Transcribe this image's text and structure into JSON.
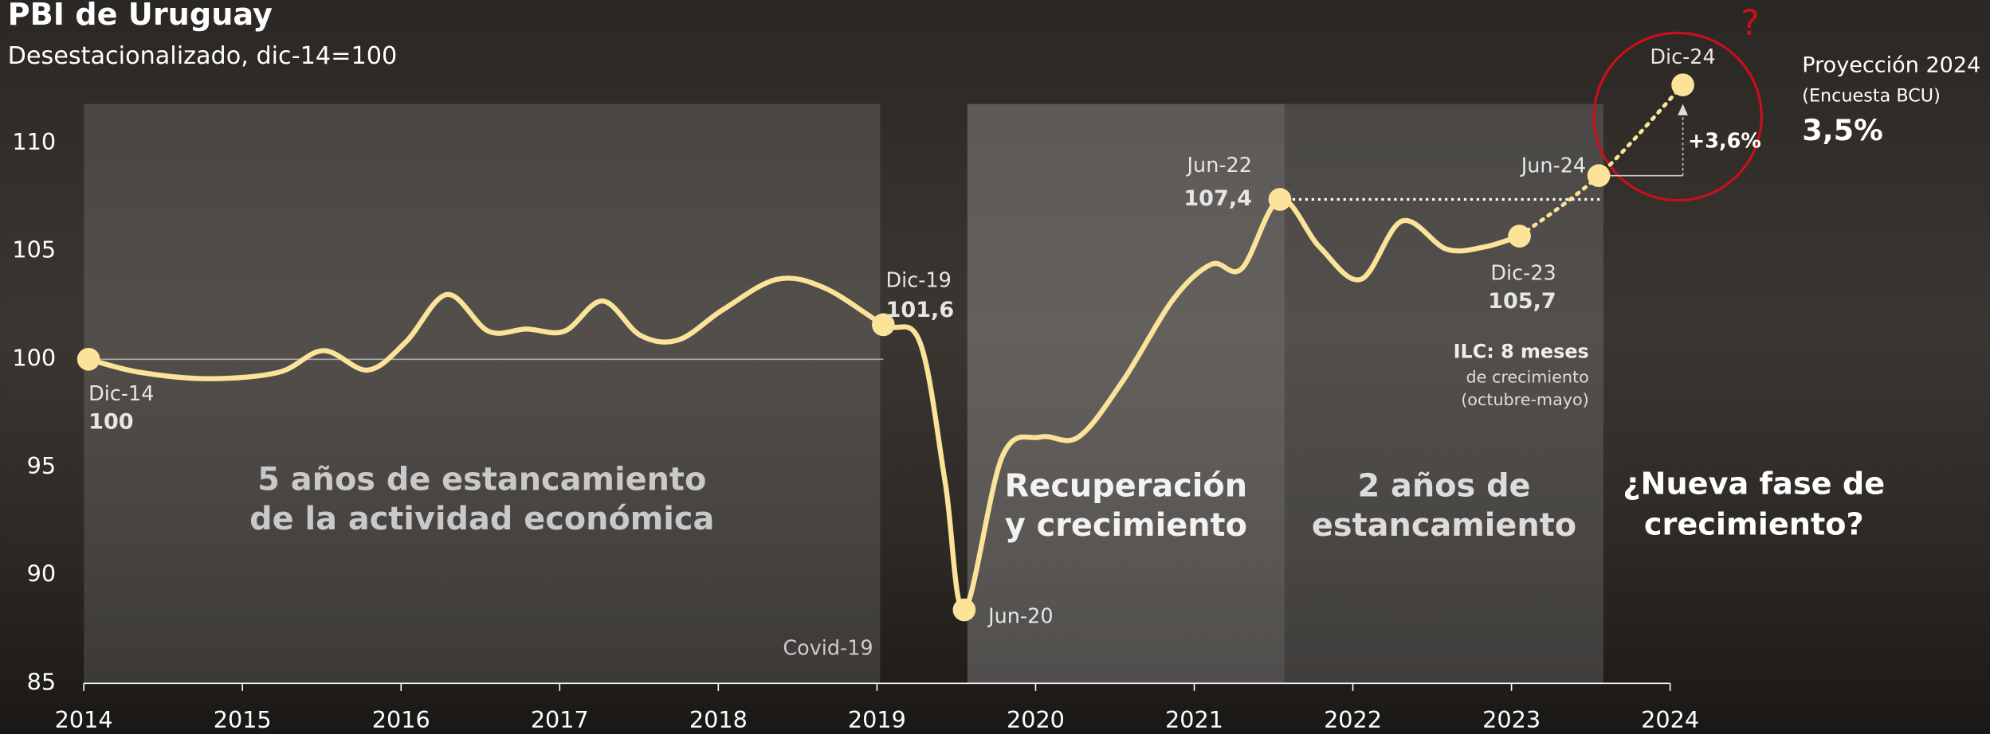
{
  "chart_data": {
    "type": "line",
    "title": "PBI de Uruguay",
    "subtitle": "Desestacionalizado, dic-14=100",
    "xlim": [
      2014,
      2024
    ],
    "xticks": [
      2014,
      2015,
      2016,
      2017,
      2018,
      2019,
      2020,
      2021,
      2022,
      2023,
      2024
    ],
    "ylim": [
      85,
      110
    ],
    "yticks": [
      85,
      90,
      95,
      100,
      105,
      110
    ],
    "series": [
      {
        "color": "#fbe39a",
        "x": [
          2014.03,
          2014.35,
          2014.79,
          2015.23,
          2015.51,
          2015.79,
          2016.03,
          2016.29,
          2016.55,
          2016.79,
          2017.03,
          2017.27,
          2017.51,
          2017.75,
          2018.03,
          2018.37,
          2018.67,
          2019.04,
          2019.27,
          2019.43,
          2019.55,
          2019.79,
          2020.03,
          2020.27,
          2020.55,
          2020.87,
          2021.11,
          2021.3,
          2021.54,
          2021.79,
          2022.05,
          2022.31,
          2022.59,
          2022.83,
          2023.05
        ],
        "values": [
          100.0,
          99.4,
          99.1,
          99.4,
          100.4,
          99.5,
          100.8,
          103.0,
          101.3,
          101.4,
          101.3,
          102.7,
          101.1,
          100.9,
          102.3,
          103.7,
          103.3,
          101.6,
          100.8,
          94.3,
          88.4,
          95.5,
          96.4,
          96.4,
          99.0,
          102.8,
          104.4,
          104.2,
          107.4,
          105.2,
          103.7,
          106.4,
          105.1,
          105.2,
          105.7
        ]
      }
    ],
    "projection": {
      "color": "#fbe39a",
      "x": [
        2023.05,
        2023.55,
        2024.08
      ],
      "values": [
        105.7,
        108.5,
        112.7
      ]
    },
    "points": {
      "x": [
        2014.03,
        2019.04,
        2019.55,
        2021.54,
        2023.05,
        2023.55,
        2024.08
      ],
      "values": [
        100,
        101.6,
        88.4,
        107.4,
        105.7,
        108.5,
        112.7
      ],
      "labels": [
        "Dic-14",
        "Dic-19",
        "Jun-20",
        "Jun-22",
        "Dic-23",
        "Jun-24",
        "Dic-24"
      ],
      "value_labels": [
        "100",
        "101,6",
        null,
        "107,4",
        "105,7",
        null,
        null
      ]
    },
    "growth_label": "+3,6%",
    "periods": [
      {
        "lines": [
          "5 años de estancamiento",
          "de la actividad económica"
        ],
        "xlim": [
          2014,
          2019.02
        ]
      },
      {
        "lines": [
          "Recuperación",
          "y crecimiento"
        ],
        "xlim": [
          2019.57,
          2021.57
        ]
      },
      {
        "lines": [
          "2 años de",
          "estancamiento"
        ],
        "xlim": [
          2021.57,
          2023.58
        ]
      }
    ],
    "outlook": [
      "¿Nueva fase de",
      "crecimiento?"
    ],
    "covid_label": "Covid-19",
    "ilc": [
      "ILC: 8 meses",
      "de crecimiento",
      "(octubre-mayo)"
    ],
    "projection_box": {
      "title": "Proyección 2024",
      "source": "(Encuesta BCU)",
      "value": "3,5%"
    }
  }
}
